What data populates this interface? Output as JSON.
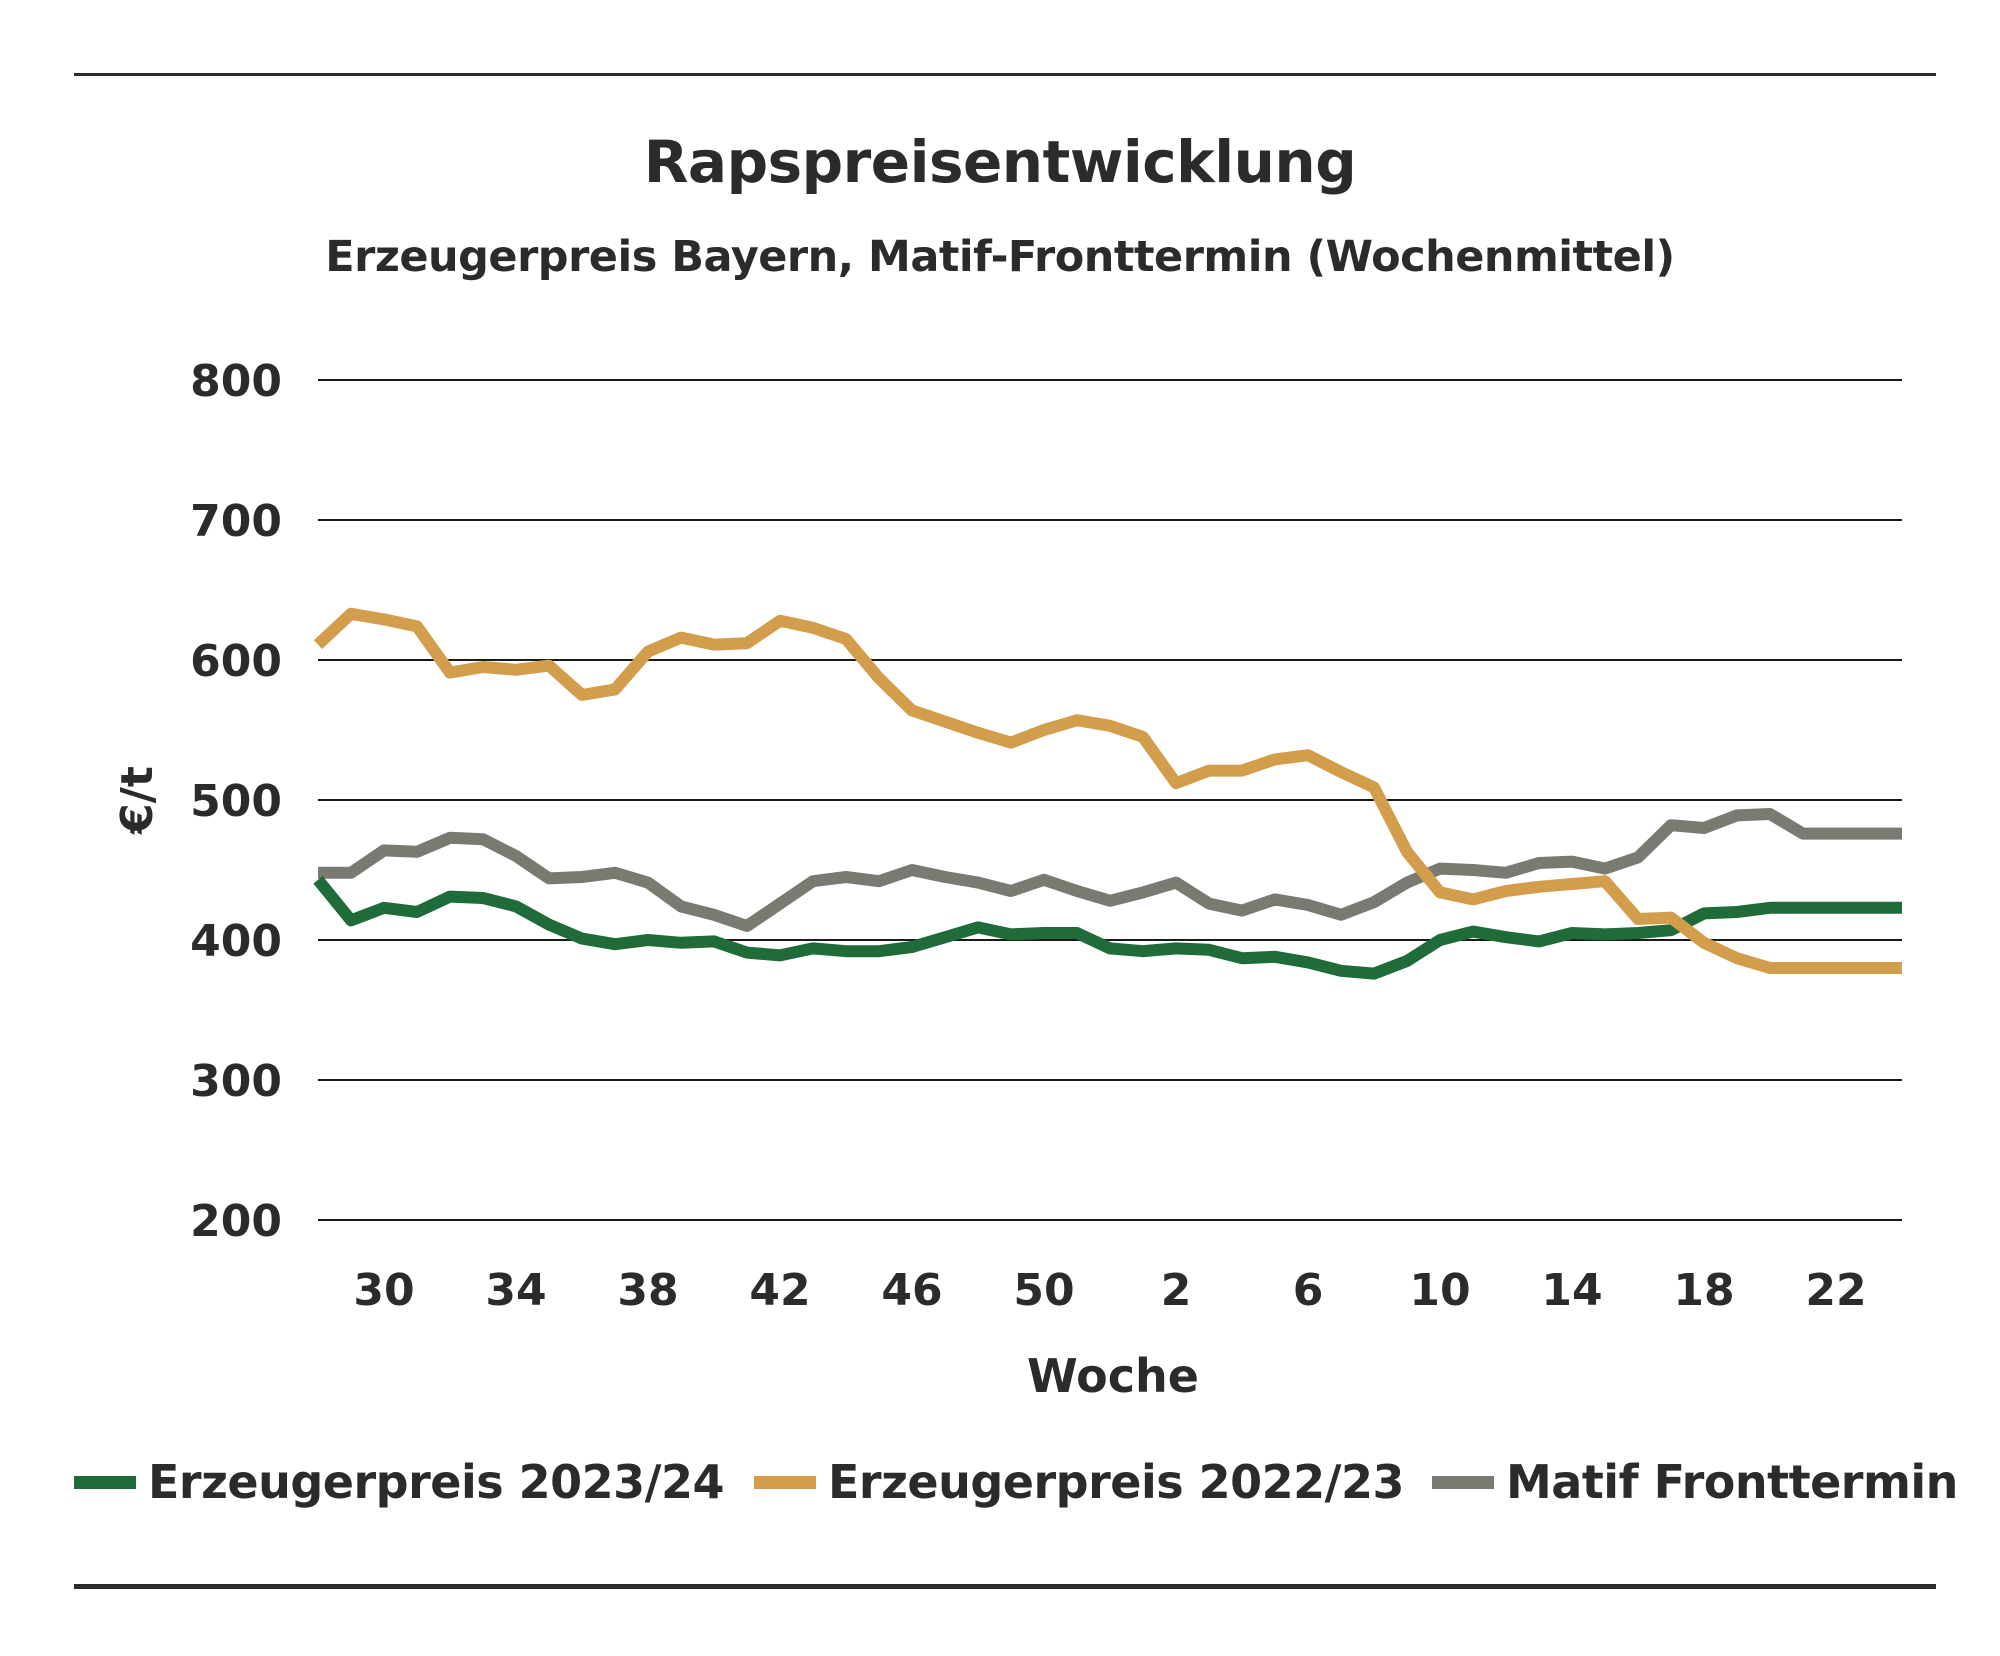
{
  "title": "Rapspreisentwicklung",
  "subtitle": "Erzeugerpreis Bayern, Matif-Fronttermin (Wochenmittel)",
  "colors": {
    "erzeuger_2023_24": "#1f6b3a",
    "erzeuger_2022_23": "#d39e4c",
    "matif": "#7a7a72",
    "grid": "#1a1a1a",
    "text": "#2b2b2b"
  },
  "chart_data": {
    "type": "line",
    "title": "Rapspreisentwicklung",
    "subtitle": "Erzeugerpreis Bayern, Matif-Fronttermin (Wochenmittel)",
    "xlabel": "Woche",
    "ylabel": "€/t",
    "ylim": [
      200,
      800
    ],
    "yticks": [
      800,
      700,
      600,
      500,
      400,
      300,
      200
    ],
    "grid": true,
    "legend_position": "bottom",
    "x": [
      28,
      29,
      30,
      31,
      32,
      33,
      34,
      35,
      36,
      37,
      38,
      39,
      40,
      41,
      42,
      43,
      44,
      45,
      46,
      47,
      48,
      49,
      50,
      51,
      52,
      1,
      2,
      3,
      4,
      5,
      6,
      7,
      8,
      9,
      10,
      11,
      12,
      13,
      14,
      15,
      16,
      17,
      18,
      19,
      20,
      21,
      22,
      23,
      24
    ],
    "xtick_labels": [
      "30",
      "34",
      "38",
      "42",
      "46",
      "50",
      "2",
      "6",
      "10",
      "14",
      "18",
      "22"
    ],
    "series": [
      {
        "name": "Erzeugerpreis 2023/24",
        "color": "#1f6b3a",
        "values": [
          443,
          414,
          423,
          420,
          431,
          430,
          424,
          411,
          401,
          397,
          400,
          398,
          399,
          391,
          389,
          394,
          392,
          392,
          395,
          402,
          409,
          404,
          405,
          405,
          394,
          392,
          394,
          393,
          387,
          388,
          384,
          378,
          376,
          385,
          400,
          406,
          402,
          399,
          405,
          404,
          405,
          407,
          419,
          420,
          423,
          423,
          423,
          423,
          423
        ]
      },
      {
        "name": "Erzeugerpreis 2022/23",
        "color": "#d39e4c",
        "values": [
          611,
          633,
          629,
          624,
          591,
          595,
          593,
          596,
          575,
          579,
          606,
          616,
          611,
          612,
          628,
          623,
          615,
          587,
          564,
          556,
          548,
          541,
          550,
          557,
          553,
          545,
          512,
          521,
          521,
          529,
          532,
          520,
          509,
          463,
          434,
          429,
          435,
          438,
          440,
          442,
          415,
          416,
          398,
          387,
          380,
          380,
          380,
          380,
          380
        ]
      },
      {
        "name": "Matif Fronttermin",
        "color": "#7a7a72",
        "values": [
          448,
          448,
          464,
          463,
          473,
          472,
          460,
          444,
          445,
          448,
          441,
          424,
          418,
          410,
          426,
          442,
          445,
          442,
          450,
          445,
          441,
          435,
          443,
          435,
          428,
          434,
          441,
          426,
          421,
          429,
          425,
          418,
          427,
          441,
          451,
          450,
          448,
          455,
          456,
          451,
          459,
          482,
          480,
          489,
          490,
          476,
          476,
          476,
          476
        ]
      }
    ]
  },
  "legend": [
    {
      "label": "Erzeugerpreis 2023/24",
      "color": "#1f6b3a"
    },
    {
      "label": "Erzeugerpreis 2022/23",
      "color": "#d39e4c"
    },
    {
      "label": "Matif Fronttermin",
      "color": "#7a7a72"
    }
  ]
}
